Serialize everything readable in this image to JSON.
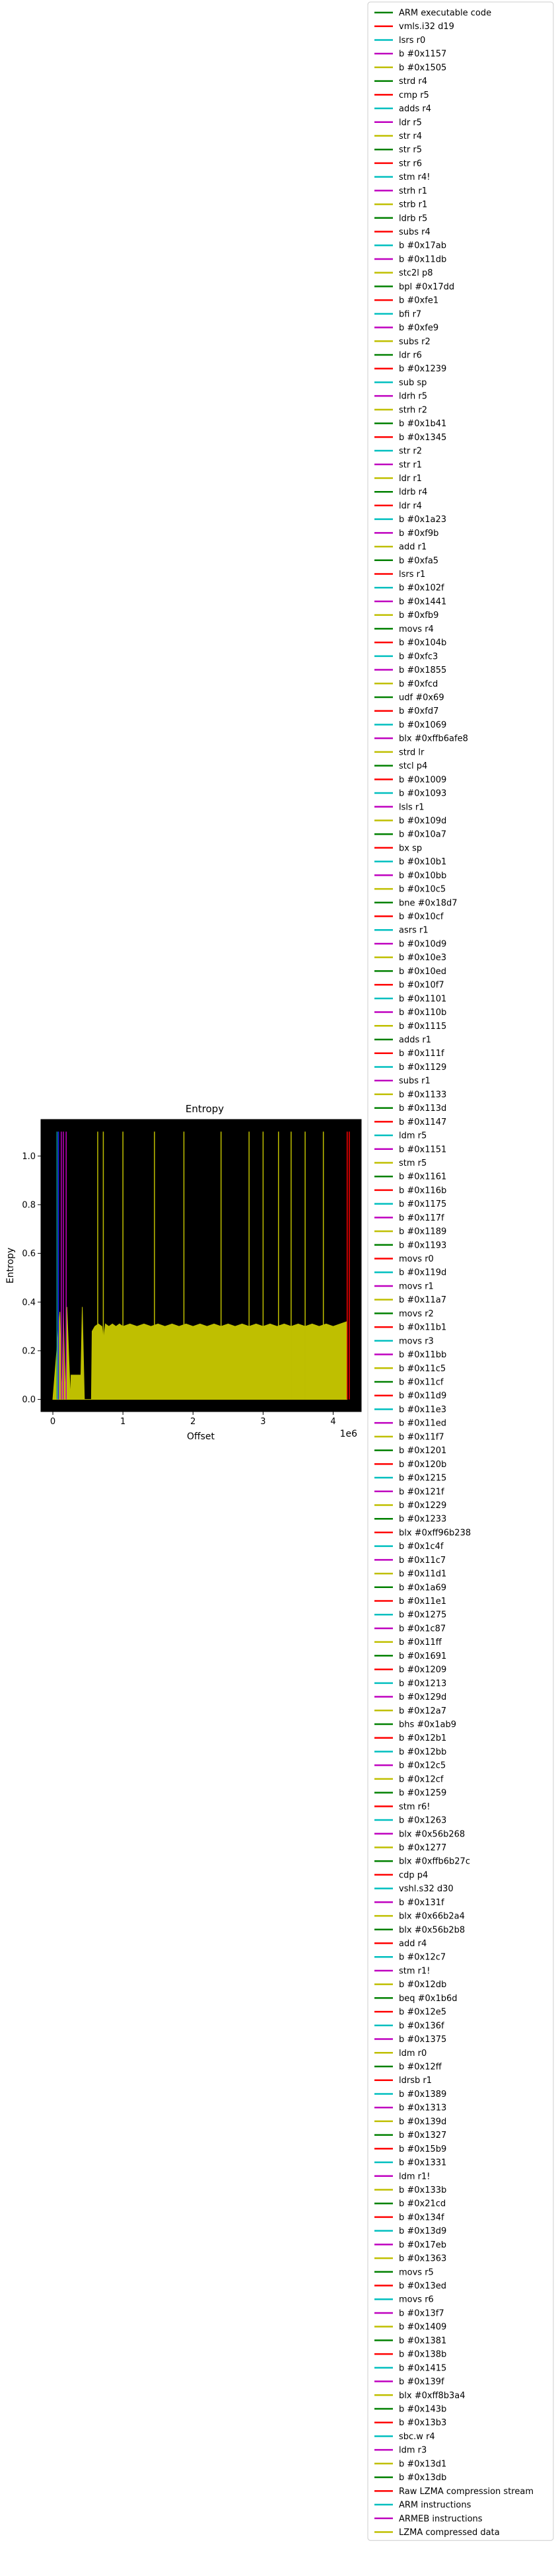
{
  "chart_data": {
    "type": "line",
    "title": "Entropy",
    "xlabel": "Offset",
    "ylabel": "Entropy",
    "x_offset_label": "1e6",
    "xlim": [
      -170000,
      4400000
    ],
    "ylim": [
      -0.05,
      1.15
    ],
    "x_ticks": [
      0,
      1,
      2,
      3,
      4
    ],
    "x_tick_labels": [
      "0",
      "1",
      "2",
      "3",
      "4"
    ],
    "y_ticks": [
      0.0,
      0.2,
      0.4,
      0.6,
      0.8,
      1.0
    ],
    "y_tick_labels": [
      "0.0",
      "0.2",
      "0.4",
      "0.6",
      "0.8",
      "1.0"
    ],
    "background": "#000000",
    "grid": false,
    "legend_location": "outside right",
    "series": [
      {
        "name": "Entropy",
        "color": "#bfbf00",
        "x": [
          0,
          100000,
          130000,
          150000,
          180000,
          200000,
          250000,
          260000,
          300000,
          350000,
          400000,
          420000,
          450000,
          500000,
          550000,
          560000,
          600000,
          650000,
          700000,
          720000,
          750000,
          800000,
          850000,
          900000,
          950000,
          1000000,
          1100000,
          1200000,
          1300000,
          1400000,
          1500000,
          1600000,
          1700000,
          1800000,
          1900000,
          2000000,
          2100000,
          2200000,
          2300000,
          2400000,
          2500000,
          2600000,
          2700000,
          2800000,
          2900000,
          3000000,
          3100000,
          3200000,
          3300000,
          3400000,
          3500000,
          3600000,
          3700000,
          3800000,
          3900000,
          4000000,
          4100000,
          4200000
        ],
        "y": [
          0.0,
          0.36,
          0.0,
          0.36,
          0.0,
          0.38,
          0.0,
          0.1,
          0.1,
          0.1,
          0.1,
          0.38,
          0.0,
          0.0,
          0.0,
          0.28,
          0.3,
          0.31,
          0.3,
          0.24,
          0.31,
          0.3,
          0.31,
          0.3,
          0.31,
          0.3,
          0.31,
          0.3,
          0.31,
          0.3,
          0.31,
          0.3,
          0.31,
          0.3,
          0.31,
          0.3,
          0.31,
          0.3,
          0.31,
          0.3,
          0.31,
          0.3,
          0.31,
          0.3,
          0.31,
          0.3,
          0.31,
          0.3,
          0.31,
          0.3,
          0.31,
          0.3,
          0.31,
          0.3,
          0.31,
          0.3,
          0.31,
          0.32
        ]
      }
    ],
    "spikes": [
      {
        "x": 60000,
        "color": "#00a0a0"
      },
      {
        "x": 80000,
        "color": "#2020ff"
      },
      {
        "x": 120000,
        "color": "#c000c0"
      },
      {
        "x": 150000,
        "color": "#c000c0"
      },
      {
        "x": 190000,
        "color": "#c000c0"
      },
      {
        "x": 640000,
        "color": "#bfbf00"
      },
      {
        "x": 720000,
        "color": "#bfbf00"
      },
      {
        "x": 1000000,
        "color": "#bfbf00"
      },
      {
        "x": 1450000,
        "color": "#bfbf00"
      },
      {
        "x": 1870000,
        "color": "#bfbf00"
      },
      {
        "x": 2400000,
        "color": "#bfbf00"
      },
      {
        "x": 2800000,
        "color": "#bfbf00"
      },
      {
        "x": 3000000,
        "color": "#bfbf00"
      },
      {
        "x": 3220000,
        "color": "#bfbf00"
      },
      {
        "x": 3400000,
        "color": "#bfbf00"
      },
      {
        "x": 3600000,
        "color": "#bfbf00"
      },
      {
        "x": 3860000,
        "color": "#bfbf00"
      },
      {
        "x": 4200000,
        "color": "#ff0000"
      },
      {
        "x": 4230000,
        "color": "#ff0000"
      }
    ],
    "legend": [
      {
        "label": "ARM executable code",
        "color": "#008000"
      },
      {
        "label": "vmls.i32 d19",
        "color": "#ff0000"
      },
      {
        "label": "lsrs r0",
        "color": "#00bfbf"
      },
      {
        "label": "b #0x1157",
        "color": "#bf00bf"
      },
      {
        "label": "b #0x1505",
        "color": "#bfbf00"
      },
      {
        "label": "strd r4",
        "color": "#008000"
      },
      {
        "label": "cmp r5",
        "color": "#ff0000"
      },
      {
        "label": "adds r4",
        "color": "#00bfbf"
      },
      {
        "label": "ldr r5",
        "color": "#bf00bf"
      },
      {
        "label": "str r4",
        "color": "#bfbf00"
      },
      {
        "label": "str r5",
        "color": "#008000"
      },
      {
        "label": "str r6",
        "color": "#ff0000"
      },
      {
        "label": "stm r4!",
        "color": "#00bfbf"
      },
      {
        "label": "strh r1",
        "color": "#bf00bf"
      },
      {
        "label": "strb r1",
        "color": "#bfbf00"
      },
      {
        "label": "ldrb r5",
        "color": "#008000"
      },
      {
        "label": "subs r4",
        "color": "#ff0000"
      },
      {
        "label": "b #0x17ab",
        "color": "#00bfbf"
      },
      {
        "label": "b #0x11db",
        "color": "#bf00bf"
      },
      {
        "label": "stc2l p8",
        "color": "#bfbf00"
      },
      {
        "label": "bpl #0x17dd",
        "color": "#008000"
      },
      {
        "label": "b #0xfe1",
        "color": "#ff0000"
      },
      {
        "label": "bfi r7",
        "color": "#00bfbf"
      },
      {
        "label": "b #0xfe9",
        "color": "#bf00bf"
      },
      {
        "label": "subs r2",
        "color": "#bfbf00"
      },
      {
        "label": "ldr r6",
        "color": "#008000"
      },
      {
        "label": "b #0x1239",
        "color": "#ff0000"
      },
      {
        "label": "sub sp",
        "color": "#00bfbf"
      },
      {
        "label": "ldrh r5",
        "color": "#bf00bf"
      },
      {
        "label": "strh r2",
        "color": "#bfbf00"
      },
      {
        "label": "b #0x1b41",
        "color": "#008000"
      },
      {
        "label": "b #0x1345",
        "color": "#ff0000"
      },
      {
        "label": "str r2",
        "color": "#00bfbf"
      },
      {
        "label": "str r1",
        "color": "#bf00bf"
      },
      {
        "label": "ldr r1",
        "color": "#bfbf00"
      },
      {
        "label": "ldrb r4",
        "color": "#008000"
      },
      {
        "label": "ldr r4",
        "color": "#ff0000"
      },
      {
        "label": "b #0x1a23",
        "color": "#00bfbf"
      },
      {
        "label": "b #0xf9b",
        "color": "#bf00bf"
      },
      {
        "label": "add r1",
        "color": "#bfbf00"
      },
      {
        "label": "b #0xfa5",
        "color": "#008000"
      },
      {
        "label": "lsrs r1",
        "color": "#ff0000"
      },
      {
        "label": "b #0x102f",
        "color": "#00bfbf"
      },
      {
        "label": "b #0x1441",
        "color": "#bf00bf"
      },
      {
        "label": "b #0xfb9",
        "color": "#bfbf00"
      },
      {
        "label": "movs r4",
        "color": "#008000"
      },
      {
        "label": "b #0x104b",
        "color": "#ff0000"
      },
      {
        "label": "b #0xfc3",
        "color": "#00bfbf"
      },
      {
        "label": "b #0x1855",
        "color": "#bf00bf"
      },
      {
        "label": "b #0xfcd",
        "color": "#bfbf00"
      },
      {
        "label": "udf #0x69",
        "color": "#008000"
      },
      {
        "label": "b #0xfd7",
        "color": "#ff0000"
      },
      {
        "label": "b #0x1069",
        "color": "#00bfbf"
      },
      {
        "label": "blx #0xffb6afe8",
        "color": "#bf00bf"
      },
      {
        "label": "strd lr",
        "color": "#bfbf00"
      },
      {
        "label": "stcl p4",
        "color": "#008000"
      },
      {
        "label": "b #0x1009",
        "color": "#ff0000"
      },
      {
        "label": "b #0x1093",
        "color": "#00bfbf"
      },
      {
        "label": "lsls r1",
        "color": "#bf00bf"
      },
      {
        "label": "b #0x109d",
        "color": "#bfbf00"
      },
      {
        "label": "b #0x10a7",
        "color": "#008000"
      },
      {
        "label": "bx sp",
        "color": "#ff0000"
      },
      {
        "label": "b #0x10b1",
        "color": "#00bfbf"
      },
      {
        "label": "b #0x10bb",
        "color": "#bf00bf"
      },
      {
        "label": "b #0x10c5",
        "color": "#bfbf00"
      },
      {
        "label": "bne #0x18d7",
        "color": "#008000"
      },
      {
        "label": "b #0x10cf",
        "color": "#ff0000"
      },
      {
        "label": "asrs r1",
        "color": "#00bfbf"
      },
      {
        "label": "b #0x10d9",
        "color": "#bf00bf"
      },
      {
        "label": "b #0x10e3",
        "color": "#bfbf00"
      },
      {
        "label": "b #0x10ed",
        "color": "#008000"
      },
      {
        "label": "b #0x10f7",
        "color": "#ff0000"
      },
      {
        "label": "b #0x1101",
        "color": "#00bfbf"
      },
      {
        "label": "b #0x110b",
        "color": "#bf00bf"
      },
      {
        "label": "b #0x1115",
        "color": "#bfbf00"
      },
      {
        "label": "adds r1",
        "color": "#008000"
      },
      {
        "label": "b #0x111f",
        "color": "#ff0000"
      },
      {
        "label": "b #0x1129",
        "color": "#00bfbf"
      },
      {
        "label": "subs r1",
        "color": "#bf00bf"
      },
      {
        "label": "b #0x1133",
        "color": "#bfbf00"
      },
      {
        "label": "b #0x113d",
        "color": "#008000"
      },
      {
        "label": "b #0x1147",
        "color": "#ff0000"
      },
      {
        "label": "ldm r5",
        "color": "#00bfbf"
      },
      {
        "label": "b #0x1151",
        "color": "#bf00bf"
      },
      {
        "label": "stm r5",
        "color": "#bfbf00"
      },
      {
        "label": "b #0x1161",
        "color": "#008000"
      },
      {
        "label": "b #0x116b",
        "color": "#ff0000"
      },
      {
        "label": "b #0x1175",
        "color": "#00bfbf"
      },
      {
        "label": "b #0x117f",
        "color": "#bf00bf"
      },
      {
        "label": "b #0x1189",
        "color": "#bfbf00"
      },
      {
        "label": "b #0x1193",
        "color": "#008000"
      },
      {
        "label": "movs r0",
        "color": "#ff0000"
      },
      {
        "label": "b #0x119d",
        "color": "#00bfbf"
      },
      {
        "label": "movs r1",
        "color": "#bf00bf"
      },
      {
        "label": "b #0x11a7",
        "color": "#bfbf00"
      },
      {
        "label": "movs r2",
        "color": "#008000"
      },
      {
        "label": "b #0x11b1",
        "color": "#ff0000"
      },
      {
        "label": "movs r3",
        "color": "#00bfbf"
      },
      {
        "label": "b #0x11bb",
        "color": "#bf00bf"
      },
      {
        "label": "b #0x11c5",
        "color": "#bfbf00"
      },
      {
        "label": "b #0x11cf",
        "color": "#008000"
      },
      {
        "label": "b #0x11d9",
        "color": "#ff0000"
      },
      {
        "label": "b #0x11e3",
        "color": "#00bfbf"
      },
      {
        "label": "b #0x11ed",
        "color": "#bf00bf"
      },
      {
        "label": "b #0x11f7",
        "color": "#bfbf00"
      },
      {
        "label": "b #0x1201",
        "color": "#008000"
      },
      {
        "label": "b #0x120b",
        "color": "#ff0000"
      },
      {
        "label": "b #0x1215",
        "color": "#00bfbf"
      },
      {
        "label": "b #0x121f",
        "color": "#bf00bf"
      },
      {
        "label": "b #0x1229",
        "color": "#bfbf00"
      },
      {
        "label": "b #0x1233",
        "color": "#008000"
      },
      {
        "label": "blx #0xff96b238",
        "color": "#ff0000"
      },
      {
        "label": "b #0x1c4f",
        "color": "#00bfbf"
      },
      {
        "label": "b #0x11c7",
        "color": "#bf00bf"
      },
      {
        "label": "b #0x11d1",
        "color": "#bfbf00"
      },
      {
        "label": "b #0x1a69",
        "color": "#008000"
      },
      {
        "label": "b #0x11e1",
        "color": "#ff0000"
      },
      {
        "label": "b #0x1275",
        "color": "#00bfbf"
      },
      {
        "label": "b #0x1c87",
        "color": "#bf00bf"
      },
      {
        "label": "b #0x11ff",
        "color": "#bfbf00"
      },
      {
        "label": "b #0x1691",
        "color": "#008000"
      },
      {
        "label": "b #0x1209",
        "color": "#ff0000"
      },
      {
        "label": "b #0x1213",
        "color": "#00bfbf"
      },
      {
        "label": "b #0x129d",
        "color": "#bf00bf"
      },
      {
        "label": "b #0x12a7",
        "color": "#bfbf00"
      },
      {
        "label": "bhs #0x1ab9",
        "color": "#008000"
      },
      {
        "label": "b #0x12b1",
        "color": "#ff0000"
      },
      {
        "label": "b #0x12bb",
        "color": "#00bfbf"
      },
      {
        "label": "b #0x12c5",
        "color": "#bf00bf"
      },
      {
        "label": "b #0x12cf",
        "color": "#bfbf00"
      },
      {
        "label": "b #0x1259",
        "color": "#008000"
      },
      {
        "label": "stm r6!",
        "color": "#ff0000"
      },
      {
        "label": "b #0x1263",
        "color": "#00bfbf"
      },
      {
        "label": "blx #0x56b268",
        "color": "#bf00bf"
      },
      {
        "label": "b #0x1277",
        "color": "#bfbf00"
      },
      {
        "label": "blx #0xffb6b27c",
        "color": "#008000"
      },
      {
        "label": "cdp p4",
        "color": "#ff0000"
      },
      {
        "label": "vshl.s32 d30",
        "color": "#00bfbf"
      },
      {
        "label": "b #0x131f",
        "color": "#bf00bf"
      },
      {
        "label": "blx #0x66b2a4",
        "color": "#bfbf00"
      },
      {
        "label": "blx #0x56b2b8",
        "color": "#008000"
      },
      {
        "label": "add r4",
        "color": "#ff0000"
      },
      {
        "label": "b #0x12c7",
        "color": "#00bfbf"
      },
      {
        "label": "stm r1!",
        "color": "#bf00bf"
      },
      {
        "label": "b #0x12db",
        "color": "#bfbf00"
      },
      {
        "label": "beq #0x1b6d",
        "color": "#008000"
      },
      {
        "label": "b #0x12e5",
        "color": "#ff0000"
      },
      {
        "label": "b #0x136f",
        "color": "#00bfbf"
      },
      {
        "label": "b #0x1375",
        "color": "#bf00bf"
      },
      {
        "label": "ldm r0",
        "color": "#bfbf00"
      },
      {
        "label": "b #0x12ff",
        "color": "#008000"
      },
      {
        "label": "ldrsb r1",
        "color": "#ff0000"
      },
      {
        "label": "b #0x1389",
        "color": "#00bfbf"
      },
      {
        "label": "b #0x1313",
        "color": "#bf00bf"
      },
      {
        "label": "b #0x139d",
        "color": "#bfbf00"
      },
      {
        "label": "b #0x1327",
        "color": "#008000"
      },
      {
        "label": "b #0x15b9",
        "color": "#ff0000"
      },
      {
        "label": "b #0x1331",
        "color": "#00bfbf"
      },
      {
        "label": "ldm r1!",
        "color": "#bf00bf"
      },
      {
        "label": "b #0x133b",
        "color": "#bfbf00"
      },
      {
        "label": "b #0x21cd",
        "color": "#008000"
      },
      {
        "label": "b #0x134f",
        "color": "#ff0000"
      },
      {
        "label": "b #0x13d9",
        "color": "#00bfbf"
      },
      {
        "label": "b #0x17eb",
        "color": "#bf00bf"
      },
      {
        "label": "b #0x1363",
        "color": "#bfbf00"
      },
      {
        "label": "movs r5",
        "color": "#008000"
      },
      {
        "label": "b #0x13ed",
        "color": "#ff0000"
      },
      {
        "label": "movs r6",
        "color": "#00bfbf"
      },
      {
        "label": "b #0x13f7",
        "color": "#bf00bf"
      },
      {
        "label": "b #0x1409",
        "color": "#bfbf00"
      },
      {
        "label": "b #0x1381",
        "color": "#008000"
      },
      {
        "label": "b #0x138b",
        "color": "#ff0000"
      },
      {
        "label": "b #0x1415",
        "color": "#00bfbf"
      },
      {
        "label": "b #0x139f",
        "color": "#bf00bf"
      },
      {
        "label": "blx #0xff8b3a4",
        "color": "#bfbf00"
      },
      {
        "label": "b #0x143b",
        "color": "#008000"
      },
      {
        "label": "b #0x13b3",
        "color": "#ff0000"
      },
      {
        "label": "sbc.w r4",
        "color": "#00bfbf"
      },
      {
        "label": "ldm r3",
        "color": "#bf00bf"
      },
      {
        "label": "b #0x13d1",
        "color": "#bfbf00"
      },
      {
        "label": "b #0x13db",
        "color": "#008000"
      },
      {
        "label": "Raw LZMA compression stream",
        "color": "#ff0000"
      },
      {
        "label": "ARM instructions",
        "color": "#00bfbf"
      },
      {
        "label": "ARMEB instructions",
        "color": "#bf00bf"
      },
      {
        "label": "LZMA compressed data",
        "color": "#bfbf00"
      }
    ]
  }
}
